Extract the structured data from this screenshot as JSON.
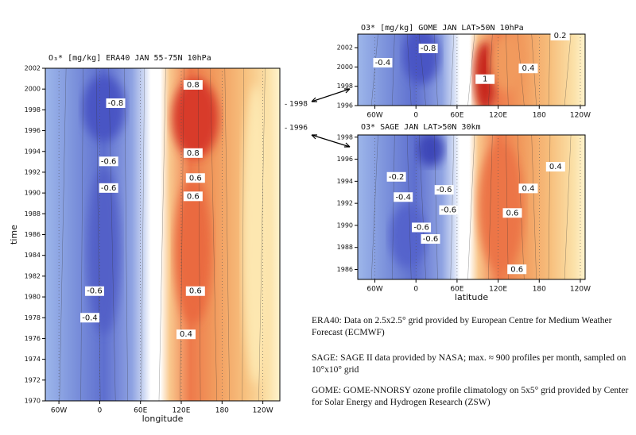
{
  "chart_data": [
    {
      "type": "contour",
      "title": "O₃* [mg/kg] ERA40 JAN 55-75N 10hPa",
      "xlabel": "longitude",
      "ylabel": "time",
      "xlim": [
        -80,
        265
      ],
      "xticks": [
        {
          "value": -60,
          "label": "60W"
        },
        0,
        {
          "value": 60,
          "label": "60E"
        },
        {
          "value": 120,
          "label": "120E"
        },
        180,
        {
          "value": 240,
          "label": "120W"
        }
      ],
      "ylim": [
        1970,
        2002
      ],
      "yticks": [
        1970,
        1972,
        1974,
        1976,
        1978,
        1980,
        1982,
        1984,
        1986,
        1988,
        1990,
        1992,
        1994,
        1996,
        1998,
        2000,
        2002
      ],
      "contour_labels": [
        -0.8,
        -0.6,
        -0.6,
        -0.6,
        -0.4,
        0.8,
        0.8,
        0.6,
        0.6,
        0.6,
        0.4
      ],
      "annotations": [
        "- 1998",
        "- 1996"
      ]
    },
    {
      "type": "contour",
      "title": "O3* [mg/kg]   GOME   JAN   LAT>50N   10hPa",
      "xlim": [
        -85,
        247
      ],
      "xticks": [
        {
          "value": -60,
          "label": "60W"
        },
        0,
        {
          "value": 60,
          "label": "60E"
        },
        {
          "value": 120,
          "label": "120E"
        },
        180,
        {
          "value": 240,
          "label": "120W"
        }
      ],
      "ylim": [
        1996,
        2003.4
      ],
      "yticks": [
        1996,
        1998,
        2000,
        2002
      ],
      "contour_labels": [
        -0.4,
        -0.8,
        1,
        0.4,
        0.2
      ]
    },
    {
      "type": "contour",
      "title": "O3*   SAGE   JAN   LAT>50N   30km",
      "xlabel": "latitude",
      "xlim": [
        -85,
        247
      ],
      "xticks": [
        {
          "value": -60,
          "label": "60W"
        },
        0,
        {
          "value": 60,
          "label": "60E"
        },
        {
          "value": 120,
          "label": "120E"
        },
        180,
        {
          "value": 240,
          "label": "120W"
        }
      ],
      "ylim": [
        1985.1,
        1998.2
      ],
      "yticks": [
        1986,
        1988,
        1990,
        1992,
        1994,
        1996,
        1998
      ],
      "contour_labels": [
        -0.2,
        -0.4,
        -0.6,
        -0.6,
        -0.6,
        -0.6,
        0.4,
        0.4,
        0.6,
        0.6
      ]
    }
  ],
  "captions": [
    "ERA40: Data on 2.5x2.5° grid provided by European Centre for Medium Weather Forecast (ECMWF)",
    "SAGE: SAGE II data provided by NASA; max. ≈ 900 profiles per month, sampled on 10°x10° grid",
    "GOME: GOME-NNORSY ozone profile climatology on 5x5° grid provided by Center for Solar Energy and Hydrogen Research (ZSW)"
  ]
}
